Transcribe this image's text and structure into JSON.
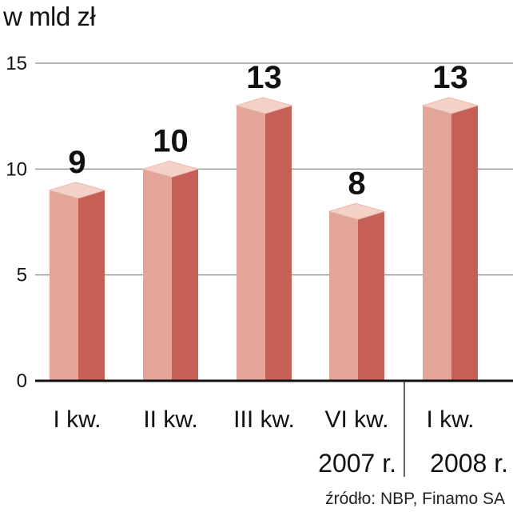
{
  "chart_data": {
    "type": "bar",
    "unit_label": "w mld zł",
    "categories": [
      "I kw.",
      "II kw.",
      "III kw.",
      "VI kw.",
      "I kw."
    ],
    "values": [
      9,
      10,
      13,
      8,
      13
    ],
    "value_labels": [
      "9",
      "10",
      "13",
      "8",
      "13"
    ],
    "groups": [
      {
        "label": "2007 r.",
        "start": 0,
        "end": 3
      },
      {
        "label": "2008 r.",
        "start": 4,
        "end": 4
      }
    ],
    "yticks": [
      0,
      5,
      10,
      15
    ],
    "ylim": [
      0,
      15
    ],
    "grid": true,
    "source": "źródło: NBP, Finamo SA",
    "colors": {
      "bar_front": "#e2a597",
      "bar_side": "#c65f56",
      "bar_top": "#f4d2c8",
      "grid": "#9a9a9a",
      "axis": "#111111"
    }
  }
}
